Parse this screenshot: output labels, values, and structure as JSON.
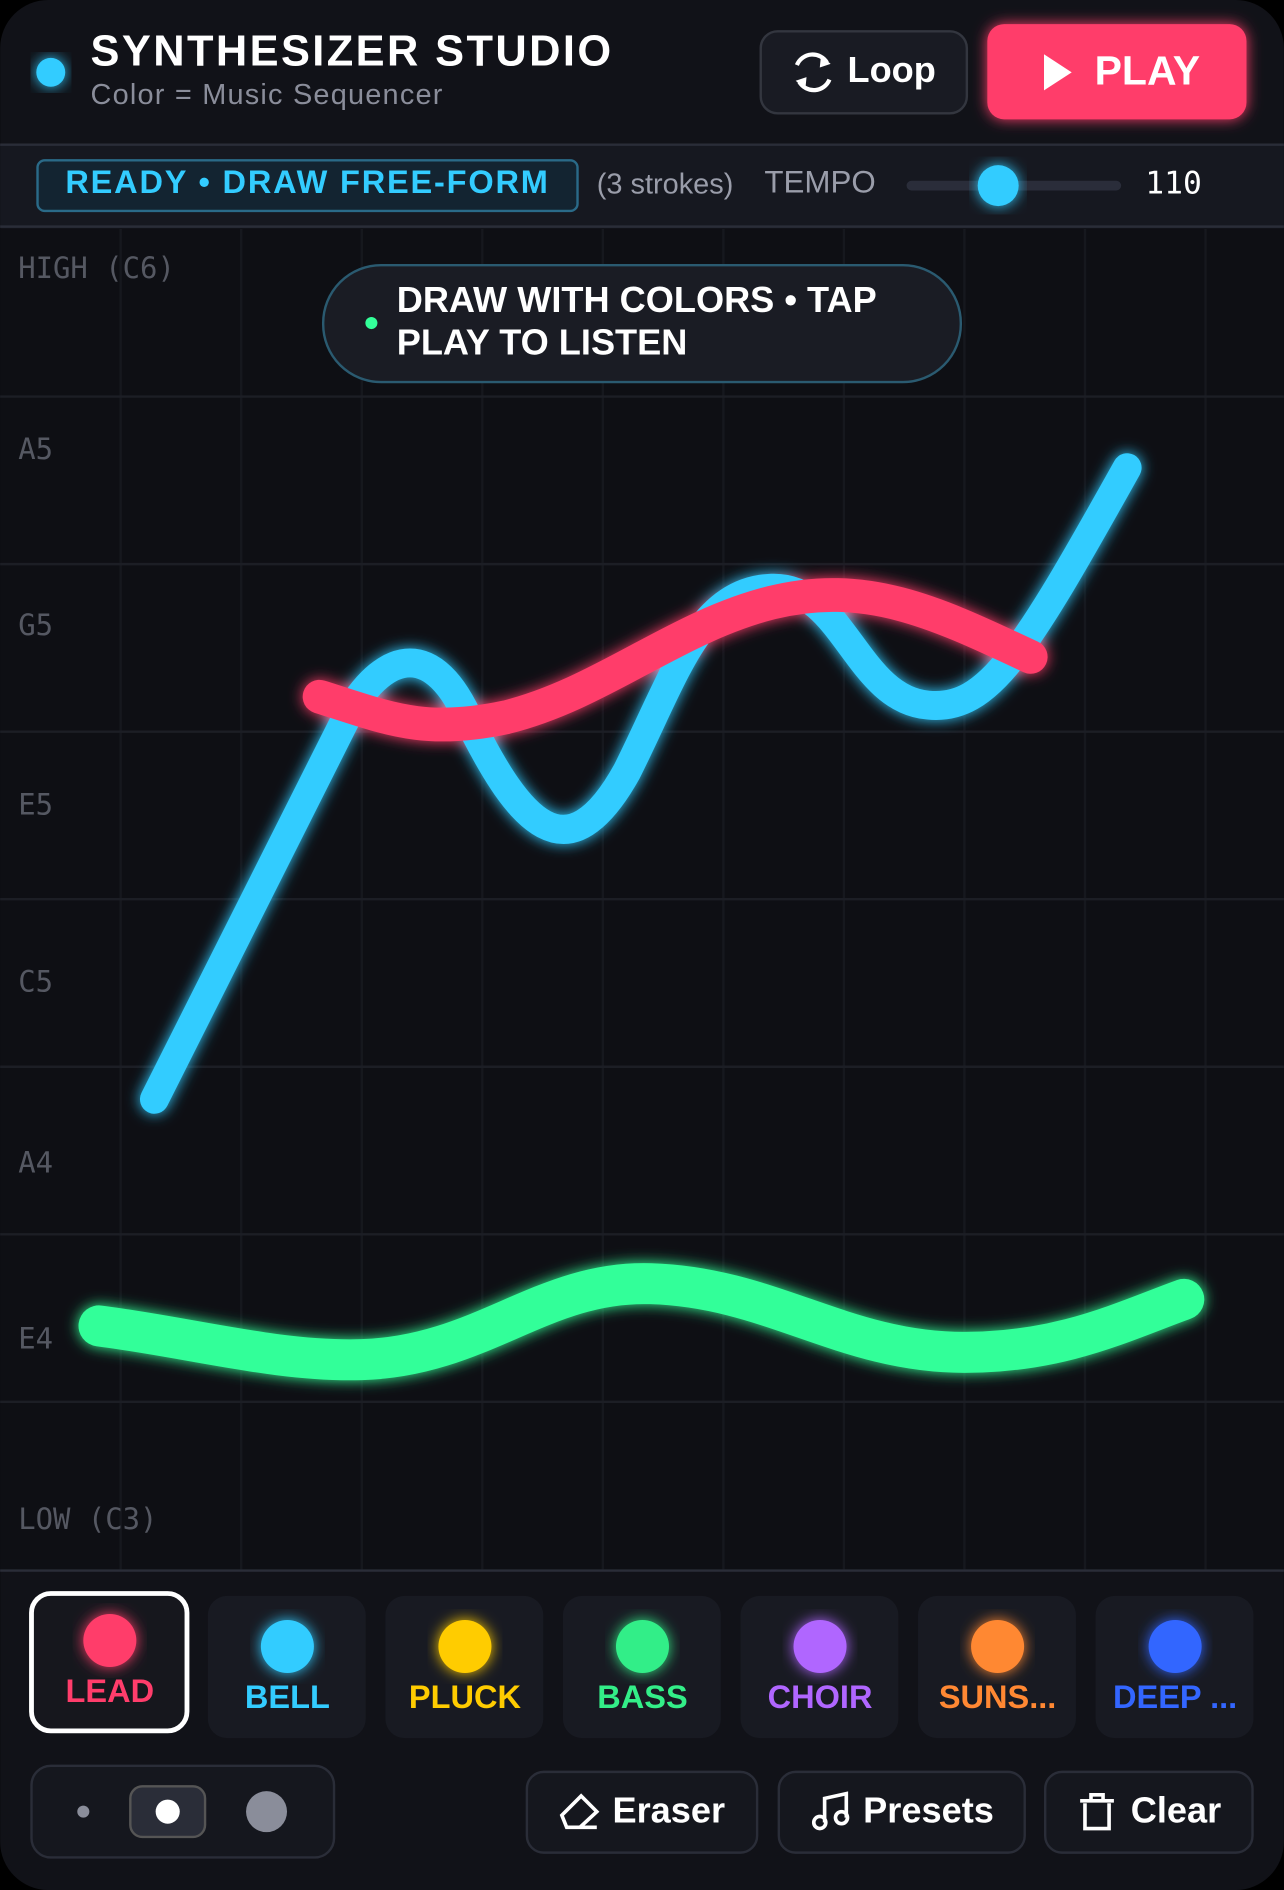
{
  "header": {
    "title": "SYNTHESIZER STUDIO",
    "subtitle": "Color = Music Sequencer",
    "loop_button": "Loop",
    "play_button": "PLAY"
  },
  "status": {
    "badge": "READY • DRAW FREE-FORM",
    "strokes": "(3 strokes)",
    "tempo_label": "TEMPO",
    "tempo_value": 110
  },
  "canvas": {
    "hint": [
      "DRAW WITH COLORS • TAP",
      "PLAY TO LISTEN"
    ],
    "note_labels": [
      "HIGH (C6)",
      "A5",
      "G5",
      "E5",
      "C5",
      "A4",
      "E4",
      "LOW (C3)"
    ]
  },
  "instruments": [
    "LEAD",
    "BELL",
    "PLUCK",
    "BASS",
    "CHOIR",
    "SUNS...",
    "DEEP ..."
  ],
  "tools": [
    "Eraser",
    "Presets",
    "Clear"
  ]
}
